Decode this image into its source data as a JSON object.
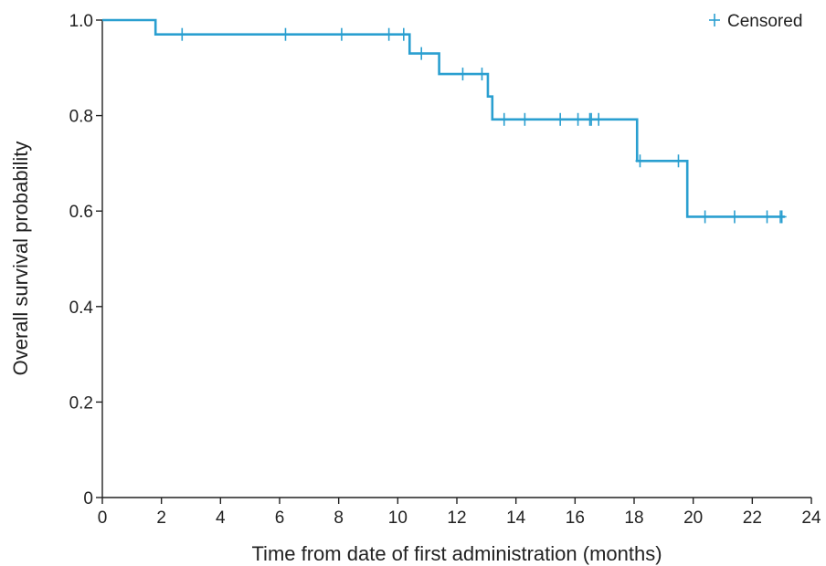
{
  "chart_data": {
    "type": "line",
    "title": "",
    "xlabel": "Time from date of first administration (months)",
    "ylabel": "Overall survival probability",
    "xlim": [
      0,
      24
    ],
    "ylim": [
      0,
      1.0
    ],
    "x_ticks": [
      "0",
      "2",
      "4",
      "6",
      "8",
      "10",
      "12",
      "14",
      "16",
      "18",
      "20",
      "22",
      "24"
    ],
    "y_ticks": [
      "0",
      "0.2",
      "0.4",
      "0.6",
      "0.8",
      "1.0"
    ],
    "grid": false,
    "legend": {
      "position": "top-right",
      "entries": [
        {
          "marker": "plus",
          "label": "Censored"
        }
      ]
    },
    "series": [
      {
        "step": true,
        "color": "#2a9fd0",
        "points": [
          [
            0,
            1.0
          ],
          [
            1.8,
            0.97
          ],
          [
            10.4,
            0.93
          ],
          [
            11.4,
            0.887
          ],
          [
            13.05,
            0.84
          ],
          [
            13.2,
            0.792
          ],
          [
            18.1,
            0.705
          ],
          [
            19.8,
            0.588
          ],
          [
            23.1,
            0.588
          ]
        ],
        "censored": [
          [
            2.7,
            0.97
          ],
          [
            6.2,
            0.97
          ],
          [
            8.1,
            0.97
          ],
          [
            9.7,
            0.97
          ],
          [
            10.2,
            0.97
          ],
          [
            10.8,
            0.93
          ],
          [
            12.2,
            0.887
          ],
          [
            12.85,
            0.887
          ],
          [
            13.6,
            0.792
          ],
          [
            14.3,
            0.792
          ],
          [
            15.5,
            0.792
          ],
          [
            16.1,
            0.792
          ],
          [
            16.5,
            0.792
          ],
          [
            16.55,
            0.792
          ],
          [
            16.8,
            0.792
          ],
          [
            18.2,
            0.705
          ],
          [
            19.5,
            0.705
          ],
          [
            20.4,
            0.588
          ],
          [
            21.4,
            0.588
          ],
          [
            22.5,
            0.588
          ],
          [
            22.95,
            0.588
          ],
          [
            23.0,
            0.588
          ]
        ]
      }
    ]
  }
}
